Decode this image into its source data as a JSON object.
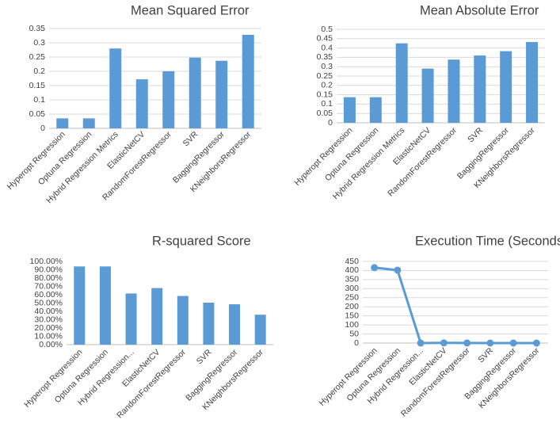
{
  "chart_data": [
    {
      "id": "mse",
      "type": "bar",
      "title": "Mean Squared Error",
      "categories": [
        "Hyperopt Regression",
        "Optuna Regression",
        "Hybrid Regression Metrics",
        "ElasticNetCV",
        "RandomForestRegressor",
        "SVR",
        "BaggingRegressor",
        "KNeighborsRegressor"
      ],
      "values": [
        0.035,
        0.035,
        0.28,
        0.172,
        0.2,
        0.248,
        0.237,
        0.328
      ],
      "ylim": [
        0,
        0.35
      ],
      "yticks": [
        "0",
        "0.05",
        "0.1",
        "0.15",
        "0.2",
        "0.25",
        "0.3",
        "0.35"
      ],
      "grid": true
    },
    {
      "id": "mae",
      "type": "bar",
      "title": "Mean Absolute Error",
      "categories": [
        "Hyperopt Regression",
        "Optuna Regression",
        "Hybrid Regression Metrics",
        "ElasticNetCV",
        "RandomForestRegressor",
        "SVR",
        "BaggingRegressor",
        "KNeighborsRegressor"
      ],
      "values": [
        0.137,
        0.137,
        0.425,
        0.29,
        0.338,
        0.36,
        0.383,
        0.432
      ],
      "ylim": [
        0,
        0.5
      ],
      "yticks": [
        "0",
        "0.05",
        "0.1",
        "0.15",
        "0.2",
        "0.25",
        "0.3",
        "0.35",
        "0.4",
        "0.45",
        "0.5"
      ],
      "grid": true
    },
    {
      "id": "r2",
      "type": "bar",
      "title": "R-squared Score",
      "categories": [
        "Hyperopt Regression",
        "Optuna Regression",
        "Hybrid Regression...",
        "ElasticNetCV",
        "RandomForestRegressor",
        "SVR",
        "BaggingRegressor",
        "KNeighborsRegressor"
      ],
      "values": [
        94.0,
        94.0,
        61.5,
        68.0,
        58.5,
        50.5,
        48.5,
        36.0
      ],
      "ylim": [
        0,
        100
      ],
      "yticks": [
        "0.00%",
        "10.00%",
        "20.00%",
        "30.00%",
        "40.00%",
        "50.00%",
        "60.00%",
        "70.00%",
        "80.00%",
        "90.00%",
        "100.00%"
      ],
      "grid": false
    },
    {
      "id": "time",
      "type": "line",
      "title": "Execution Time (Seconds)",
      "categories": [
        "Hyperopt Regression",
        "Optuna Regression",
        "Hybrid Regression...",
        "ElasticNetCV",
        "RandomForestRegressor",
        "SVR",
        "BaggingRegressor",
        "KNeighborsRegressor"
      ],
      "values": [
        416,
        402,
        0,
        1,
        0.5,
        0,
        0,
        0
      ],
      "ylim": [
        0,
        450
      ],
      "yticks": [
        "0",
        "50",
        "100",
        "150",
        "200",
        "250",
        "300",
        "350",
        "400",
        "450"
      ],
      "grid": true
    }
  ]
}
